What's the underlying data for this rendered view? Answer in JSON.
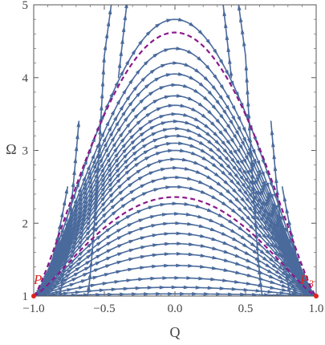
{
  "chart_data": {
    "type": "streamplot",
    "title": "",
    "xlabel": "Q",
    "ylabel": "Ω",
    "xlim": [
      -1.0,
      1.0
    ],
    "ylim": [
      1.0,
      5.0
    ],
    "x_ticks": [
      {
        "value": -1.0,
        "label": "−1.0"
      },
      {
        "value": -0.5,
        "label": "−0.5"
      },
      {
        "value": 0.0,
        "label": "0.0"
      },
      {
        "value": 0.5,
        "label": "0.5"
      },
      {
        "value": 1.0,
        "label": "1.0"
      }
    ],
    "y_ticks": [
      {
        "value": 1,
        "label": "1"
      },
      {
        "value": 2,
        "label": "2"
      },
      {
        "value": 3,
        "label": "3"
      },
      {
        "value": 4,
        "label": "4"
      },
      {
        "value": 5,
        "label": "5"
      }
    ],
    "grid": false,
    "stream_color": "#4a6a9c",
    "separatrix_color": "#8b1a8b",
    "point_color": "#e0241b",
    "streamline_peaks": [
      1.03,
      1.12,
      1.25,
      1.42,
      1.58,
      1.72,
      1.86,
      2.0,
      2.13,
      2.27,
      2.5,
      2.63,
      2.76,
      2.88,
      3.0,
      3.1,
      3.2,
      3.3,
      3.4,
      3.5,
      3.62,
      3.75,
      3.9,
      4.05,
      4.2,
      4.4,
      4.8
    ],
    "side_lines_left": [
      {
        "q0": -0.97,
        "q1": -0.88,
        "y1": 1.4
      },
      {
        "q0": -0.95,
        "q1": -0.82,
        "y1": 1.8
      },
      {
        "q0": -0.95,
        "q1": -0.76,
        "y1": 2.5
      },
      {
        "q0": -0.82,
        "q1": -0.68,
        "y1": 3.4
      },
      {
        "q0": -0.62,
        "q1": -0.5,
        "y1": 4.3
      }
    ],
    "side_lines_right": [
      {
        "q0": 0.97,
        "q1": 0.88,
        "y1": 1.4
      },
      {
        "q0": 0.95,
        "q1": 0.82,
        "y1": 1.8
      },
      {
        "q0": 0.95,
        "q1": 0.76,
        "y1": 2.5
      },
      {
        "q0": 0.82,
        "q1": 0.68,
        "y1": 3.4
      },
      {
        "q0": 0.62,
        "q1": 0.5,
        "y1": 4.3
      }
    ],
    "separatrices": [
      {
        "peak": 4.62,
        "base": 1.0
      },
      {
        "peak": 2.36,
        "base": 1.0
      }
    ],
    "fixed_points": [
      {
        "label": "P",
        "q": -1.0,
        "omega": 1.0
      },
      {
        "label": "P3",
        "q": 1.0,
        "omega": 1.0
      }
    ]
  }
}
